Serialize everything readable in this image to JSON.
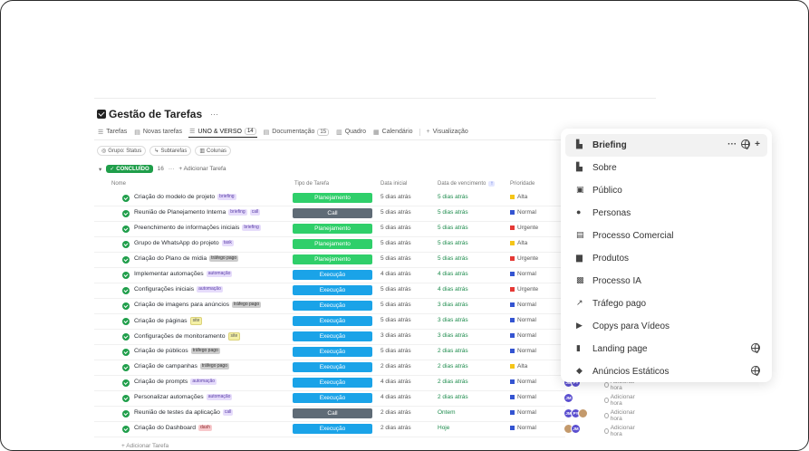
{
  "page": {
    "title": "Gestão de Tarefas",
    "title_more": "···"
  },
  "tabs": [
    {
      "label": "Tarefas",
      "icon": "list-icon"
    },
    {
      "label": "Novas tarefas",
      "icon": "doc-icon"
    },
    {
      "label": "UNO & VERSO",
      "icon": "list-icon",
      "count": "14",
      "active": true
    },
    {
      "label": "Documentação",
      "icon": "doc-icon",
      "count": "15"
    },
    {
      "label": "Quadro",
      "icon": "board-icon"
    },
    {
      "label": "Calendário",
      "icon": "calendar-icon"
    },
    {
      "label": "Visualização",
      "icon": "plus-icon"
    }
  ],
  "filters": [
    {
      "label": "Grupo: Status"
    },
    {
      "label": "Subtarefas"
    },
    {
      "label": "Colunas"
    }
  ],
  "group": {
    "status": "CONCLUÍDO",
    "count": "16",
    "more": "···",
    "add_label": "+ Adicionar Tarefa"
  },
  "columns": {
    "name": "Nome",
    "tipo": "Tipo de Tarefa",
    "data_inicial": "Data inicial",
    "data_vencimento": "Data de vencimento",
    "prioridade": "Prioridade"
  },
  "tasks": [
    {
      "name": "Criação do modelo de projeto",
      "tag": "briefing",
      "tag_color": "purple",
      "tipo": "Planejamento",
      "tipo_color": "#2fcf6a",
      "ini": "5 dias atrás",
      "venc": "5 dias atrás",
      "prio": "Alta",
      "prio_color": "#f5c518",
      "avatars": [],
      "hora": ""
    },
    {
      "name": "Reunião de Planejamento Interna",
      "tag": "briefing",
      "tag_color": "purple",
      "tag2": "call",
      "tag2_color": "purple",
      "tipo": "Call",
      "tipo_color": "#5f6b76",
      "ini": "5 dias atrás",
      "venc": "5 dias atrás",
      "prio": "Normal",
      "prio_color": "#3454d1",
      "avatars": [],
      "hora": ""
    },
    {
      "name": "Preenchimento de informações iniciais",
      "tag": "briefing",
      "tag_color": "purple",
      "tipo": "Planejamento",
      "tipo_color": "#2fcf6a",
      "ini": "5 dias atrás",
      "venc": "5 dias atrás",
      "prio": "Urgente",
      "prio_color": "#e53935",
      "avatars": [],
      "hora": ""
    },
    {
      "name": "Grupo de WhatsApp do projeto",
      "tag": "task",
      "tag_color": "purple",
      "tipo": "Planejamento",
      "tipo_color": "#2fcf6a",
      "ini": "5 dias atrás",
      "venc": "5 dias atrás",
      "prio": "Alta",
      "prio_color": "#f5c518",
      "avatars": [],
      "hora": ""
    },
    {
      "name": "Criação do Plano de mídia",
      "tag": "tráfego pago",
      "tag_color": "gray",
      "tipo": "Planejamento",
      "tipo_color": "#2fcf6a",
      "ini": "5 dias atrás",
      "venc": "5 dias atrás",
      "prio": "Urgente",
      "prio_color": "#e53935",
      "avatars": [],
      "hora": ""
    },
    {
      "name": "Implementar automações",
      "tag": "automação",
      "tag_color": "purple",
      "tipo": "Execução",
      "tipo_color": "#1aa3e8",
      "ini": "4 dias atrás",
      "venc": "4 dias atrás",
      "prio": "Normal",
      "prio_color": "#3454d1",
      "avatars": [],
      "hora": ""
    },
    {
      "name": "Configurações iniciais",
      "tag": "automação",
      "tag_color": "purple",
      "tipo": "Execução",
      "tipo_color": "#1aa3e8",
      "ini": "5 dias atrás",
      "venc": "4 dias atrás",
      "prio": "Urgente",
      "prio_color": "#e53935",
      "avatars": [],
      "hora": ""
    },
    {
      "name": "Criação de imagens para anúncios",
      "tag": "tráfego pago",
      "tag_color": "gray",
      "tipo": "Execução",
      "tipo_color": "#1aa3e8",
      "ini": "5 dias atrás",
      "venc": "3 dias atrás",
      "prio": "Normal",
      "prio_color": "#3454d1",
      "avatars": [],
      "hora": ""
    },
    {
      "name": "Criação de páginas",
      "tag": "site",
      "tag_color": "yellow",
      "tipo": "Execução",
      "tipo_color": "#1aa3e8",
      "ini": "5 dias atrás",
      "venc": "3 dias atrás",
      "prio": "Normal",
      "prio_color": "#3454d1",
      "avatars": [],
      "hora": ""
    },
    {
      "name": "Configurações de monitoramento",
      "tag": "site",
      "tag_color": "yellow",
      "tipo": "Execução",
      "tipo_color": "#1aa3e8",
      "ini": "3 dias atrás",
      "venc": "3 dias atrás",
      "prio": "Normal",
      "prio_color": "#3454d1",
      "avatars": [],
      "hora": ""
    },
    {
      "name": "Criação de públicos",
      "tag": "tráfego pago",
      "tag_color": "gray",
      "tipo": "Execução",
      "tipo_color": "#1aa3e8",
      "ini": "5 dias atrás",
      "venc": "2 dias atrás",
      "prio": "Normal",
      "prio_color": "#3454d1",
      "avatars": [],
      "hora": ""
    },
    {
      "name": "Criação de campanhas",
      "tag": "tráfego pago",
      "tag_color": "gray",
      "tipo": "Execução",
      "tipo_color": "#1aa3e8",
      "ini": "2 dias atrás",
      "venc": "2 dias atrás",
      "prio": "Alta",
      "prio_color": "#f5c518",
      "avatars": [],
      "hora": ""
    },
    {
      "name": "Criação de prompts",
      "tag": "automação",
      "tag_color": "purple",
      "tipo": "Execução",
      "tipo_color": "#1aa3e8",
      "ini": "4 dias atrás",
      "venc": "2 dias atrás",
      "prio": "Normal",
      "prio_color": "#3454d1",
      "avatars": [
        "JM",
        "PY"
      ],
      "hora": "Adicionar hora"
    },
    {
      "name": "Personalizar automações",
      "tag": "automação",
      "tag_color": "purple",
      "tipo": "Execução",
      "tipo_color": "#1aa3e8",
      "ini": "4 dias atrás",
      "venc": "2 dias atrás",
      "prio": "Normal",
      "prio_color": "#3454d1",
      "avatars": [
        "JM"
      ],
      "hora": "Adicionar hora"
    },
    {
      "name": "Reunião de testes da aplicação",
      "tag": "call",
      "tag_color": "purple",
      "tipo": "Call",
      "tipo_color": "#5f6b76",
      "ini": "2 dias atrás",
      "venc": "Ontem",
      "prio": "Normal",
      "prio_color": "#3454d1",
      "avatars": [
        "JM",
        "PY",
        ""
      ],
      "hora": "Adicionar hora"
    },
    {
      "name": "Criação do Dashboard",
      "tag": "dash",
      "tag_color": "pink",
      "tipo": "Execução",
      "tipo_color": "#1aa3e8",
      "ini": "2 dias atrás",
      "venc": "Hoje",
      "prio": "Normal",
      "prio_color": "#3454d1",
      "avatars": [
        "",
        "JM"
      ],
      "hora": "Adicionar hora"
    }
  ],
  "add_task_label": "+ Adicionar Tarefa",
  "menu": [
    {
      "label": "Briefing",
      "icon": "building-icon",
      "active": true
    },
    {
      "label": "Sobre",
      "icon": "building-icon"
    },
    {
      "label": "Público",
      "icon": "user-card-icon"
    },
    {
      "label": "Personas",
      "icon": "person-icon"
    },
    {
      "label": "Processo Comercial",
      "icon": "chat-icon"
    },
    {
      "label": "Produtos",
      "icon": "bag-icon"
    },
    {
      "label": "Processo IA",
      "icon": "robot-icon"
    },
    {
      "label": "Tráfego pago",
      "icon": "trend-up-icon"
    },
    {
      "label": "Copys para Vídeos",
      "icon": "play-icon"
    },
    {
      "label": "Landing page",
      "icon": "book-icon",
      "globe": true
    },
    {
      "label": "Anúncios Estáticos",
      "icon": "tag-icon",
      "globe": true
    }
  ],
  "menu_actions": {
    "more": "···",
    "add": "+"
  },
  "colors": {
    "done": "#1f9e4a",
    "planejamento": "#2fcf6a",
    "execucao": "#1aa3e8",
    "call": "#5f6b76",
    "avatar": "#5b4fcf"
  }
}
